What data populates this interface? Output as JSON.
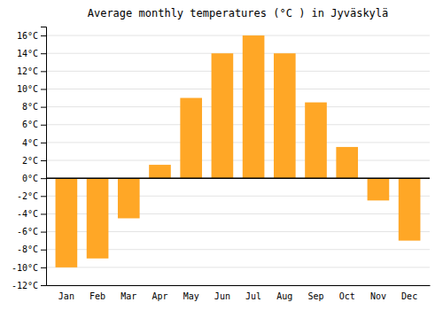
{
  "chart_data": {
    "type": "bar",
    "title": "Average monthly temperatures (°C ) in Jyväskylä",
    "categories": [
      "Jan",
      "Feb",
      "Mar",
      "Apr",
      "May",
      "Jun",
      "Jul",
      "Aug",
      "Sep",
      "Oct",
      "Nov",
      "Dec"
    ],
    "values": [
      -10,
      -9,
      -4.5,
      1.5,
      9,
      14,
      16,
      14,
      8.5,
      3.5,
      -2.5,
      -7
    ],
    "color": "#FFA726",
    "ylim": [
      -12,
      17
    ],
    "yticks": [
      {
        "value": -12,
        "label": "-12°C"
      },
      {
        "value": -10,
        "label": "-10°C"
      },
      {
        "value": -8,
        "label": "-8°C"
      },
      {
        "value": -6,
        "label": "-6°C"
      },
      {
        "value": -4,
        "label": "-4°C"
      },
      {
        "value": -2,
        "label": "-2°C"
      },
      {
        "value": 0,
        "label": "0°C"
      },
      {
        "value": 2,
        "label": "2°C"
      },
      {
        "value": 4,
        "label": "4°C"
      },
      {
        "value": 6,
        "label": "6°C"
      },
      {
        "value": 8,
        "label": "8°C"
      },
      {
        "value": 10,
        "label": "10°C"
      },
      {
        "value": 12,
        "label": "12°C"
      },
      {
        "value": 14,
        "label": "14°C"
      },
      {
        "value": 16,
        "label": "16°C"
      }
    ],
    "grid": true
  }
}
